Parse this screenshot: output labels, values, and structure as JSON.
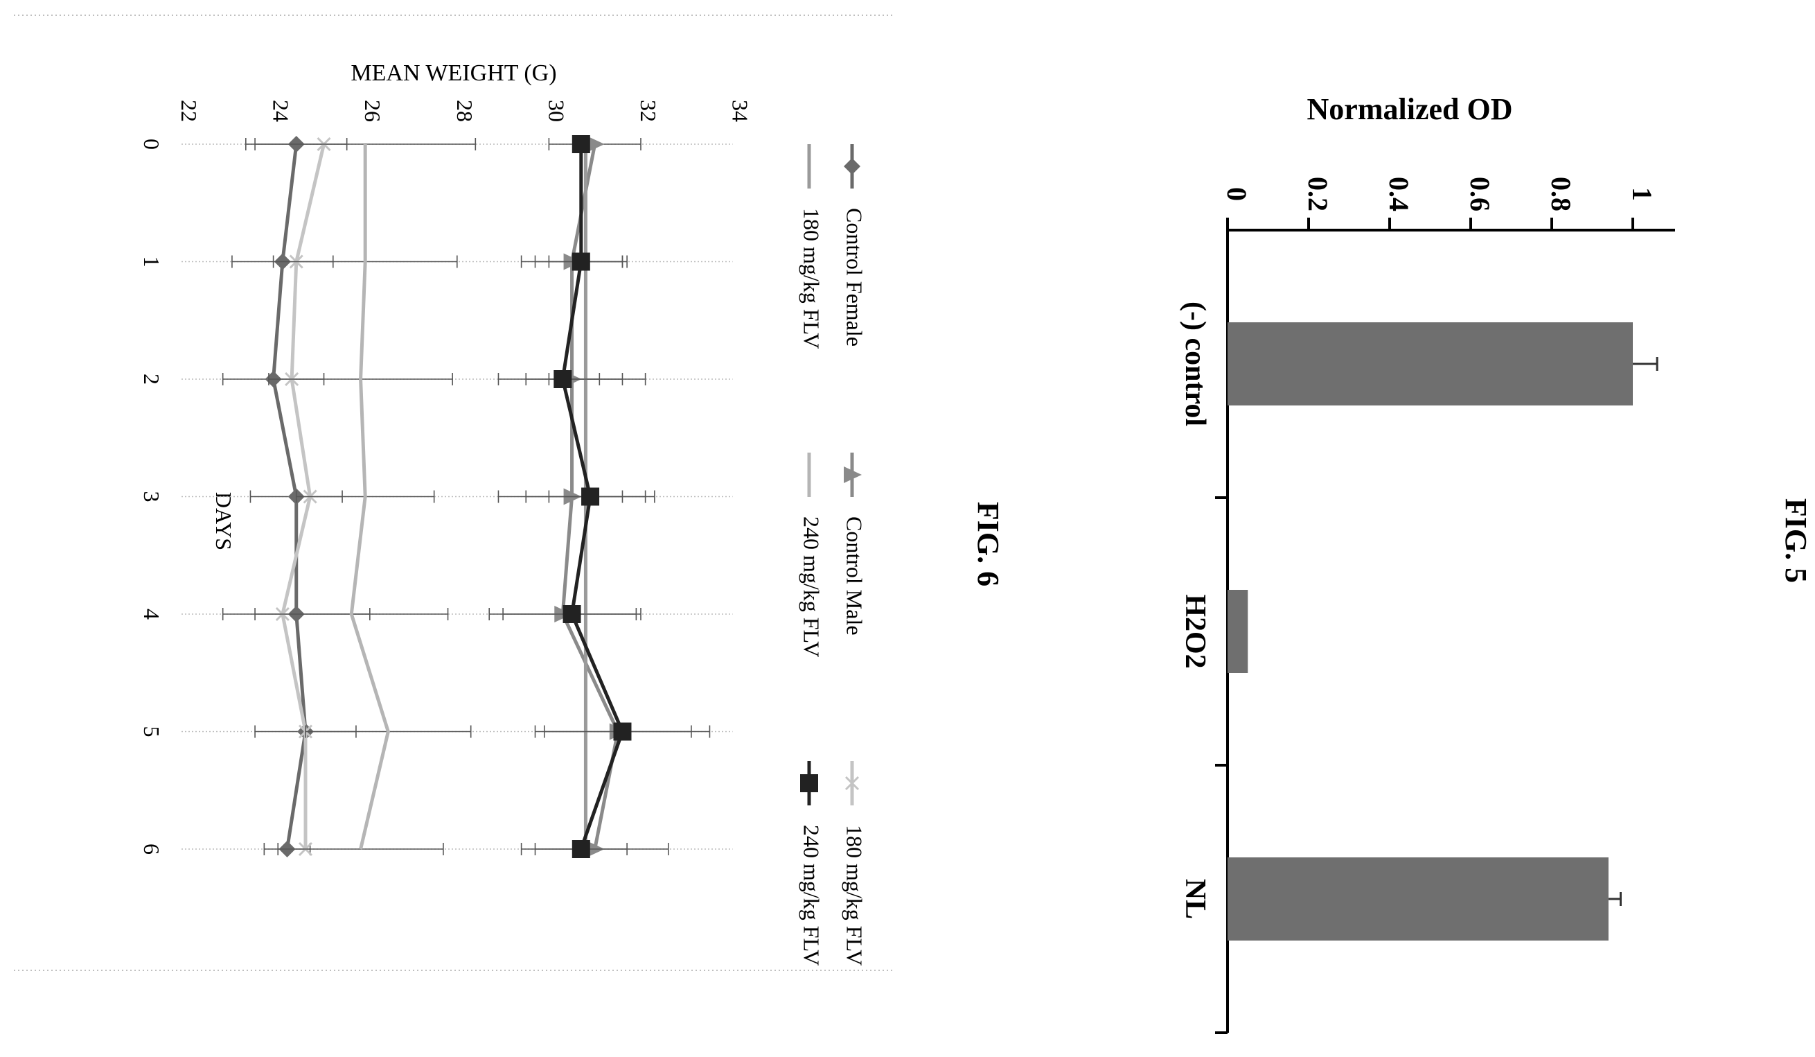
{
  "figures": [
    {
      "label": "FIG. 5",
      "chart_data": {
        "type": "bar",
        "ylabel": "Normalized OD",
        "xlabel": "",
        "categories": [
          "(-) control",
          "H2O2",
          "NL"
        ],
        "values": [
          1.0,
          0.05,
          0.94
        ],
        "errors": [
          0.06,
          0.0,
          0.03
        ],
        "ylim": [
          0,
          1.1
        ],
        "yticks": [
          "0",
          "0.2",
          "0.4",
          "0.6",
          "0.8",
          "1"
        ],
        "bar_color": "#6f6f6f",
        "legend": "none",
        "grid": false
      }
    },
    {
      "label": "FIG. 6",
      "chart_data": {
        "type": "line",
        "xlabel": "DAYS",
        "ylabel": "MEAN WEIGHT (G)",
        "x": [
          0,
          1,
          2,
          3,
          4,
          5,
          6
        ],
        "xticks": [
          "0",
          "1",
          "2",
          "3",
          "4",
          "5",
          "6"
        ],
        "ylim": [
          22,
          34
        ],
        "yticks": [
          "22",
          "24",
          "26",
          "28",
          "30",
          "32",
          "34"
        ],
        "grid": true,
        "legend": "top",
        "series": [
          {
            "name": "Control Female",
            "marker": "diamond",
            "color": "#6a6a6a",
            "values": [
              24.5,
              24.2,
              24.0,
              24.5,
              24.5,
              24.7,
              24.3
            ],
            "errors": [
              1.1,
              1.1,
              1.1,
              1.0,
              1.6,
              1.1,
              0.5
            ]
          },
          {
            "name": "Control Male",
            "marker": "triangle",
            "color": "#8a8a8a",
            "values": [
              31.0,
              30.5,
              30.5,
              30.5,
              30.3,
              31.5,
              31.0
            ],
            "errors": [
              1.0,
              1.1,
              1.6,
              1.6,
              1.6,
              1.6,
              1.6
            ]
          },
          {
            "name": "180 mg/kg FLV",
            "marker": "cross",
            "color": "#c4c4c4",
            "values": [
              25.1,
              24.5,
              24.4,
              24.8,
              24.2,
              24.7,
              24.7
            ],
            "errors": [
              0,
              0,
              0,
              0,
              0,
              0,
              0
            ]
          },
          {
            "name": "180 mg/kg FLV",
            "marker": "plus",
            "color": "#9a9a9a",
            "values": [
              30.8,
              30.8,
              30.8,
              30.8,
              30.8,
              30.8,
              30.8
            ],
            "errors": [
              0,
              0.8,
              0.8,
              0.8,
              0,
              0,
              0
            ]
          },
          {
            "name": "240 mg/kg FLV",
            "marker": "none",
            "color": "#b5b5b5",
            "values": [
              26.0,
              26.0,
              25.9,
              26.0,
              25.7,
              26.5,
              25.9
            ],
            "errors": [
              2.4,
              2.0,
              2.0,
              1.5,
              2.1,
              1.8,
              1.8
            ]
          },
          {
            "name": "240 mg/kg FLV",
            "marker": "square",
            "color": "#222222",
            "values": [
              30.7,
              30.7,
              30.3,
              30.9,
              30.5,
              31.6,
              30.7
            ],
            "errors": [
              0,
              1.0,
              0.8,
              1.4,
              1.5,
              1.9,
              1.0
            ]
          }
        ]
      }
    }
  ]
}
